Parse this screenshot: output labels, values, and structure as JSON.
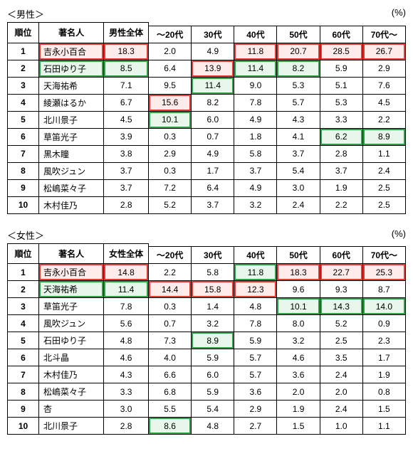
{
  "labels": {
    "percent": "(%)",
    "rank": "順位",
    "celebrity": "著名人",
    "age_headers": [
      "～20代",
      "30代",
      "40代",
      "50代",
      "60代",
      "70代～"
    ]
  },
  "tables": [
    {
      "title": "＜男性＞",
      "total_label": "男性全体",
      "rows": [
        {
          "rank": "1",
          "name": "吉永小百合",
          "name_hl": "red",
          "total": "18.3",
          "total_hl": "red",
          "vals": [
            "2.0",
            "4.9",
            "11.8",
            "20.7",
            "28.5",
            "26.7"
          ],
          "hl": [
            null,
            null,
            "red",
            "red",
            "red",
            "red"
          ]
        },
        {
          "rank": "2",
          "name": "石田ゆり子",
          "name_hl": "green",
          "total": "8.5",
          "total_hl": "green",
          "vals": [
            "6.4",
            "13.9",
            "11.4",
            "8.2",
            "5.9",
            "2.9"
          ],
          "hl": [
            null,
            "red",
            "green",
            "green",
            null,
            null
          ]
        },
        {
          "rank": "3",
          "name": "天海祐希",
          "name_hl": null,
          "total": "7.1",
          "total_hl": null,
          "vals": [
            "9.5",
            "11.4",
            "9.0",
            "5.3",
            "5.1",
            "7.6"
          ],
          "hl": [
            null,
            "green",
            null,
            null,
            null,
            null
          ]
        },
        {
          "rank": "4",
          "name": "綾瀬はるか",
          "name_hl": null,
          "total": "6.7",
          "total_hl": null,
          "vals": [
            "15.6",
            "8.2",
            "7.8",
            "5.7",
            "5.3",
            "4.5"
          ],
          "hl": [
            "red",
            null,
            null,
            null,
            null,
            null
          ]
        },
        {
          "rank": "5",
          "name": "北川景子",
          "name_hl": null,
          "total": "4.5",
          "total_hl": null,
          "vals": [
            "10.1",
            "6.0",
            "4.9",
            "4.3",
            "3.3",
            "2.2"
          ],
          "hl": [
            "green",
            null,
            null,
            null,
            null,
            null
          ]
        },
        {
          "rank": "6",
          "name": "草笛光子",
          "name_hl": null,
          "total": "3.9",
          "total_hl": null,
          "vals": [
            "0.3",
            "0.7",
            "1.8",
            "4.1",
            "6.2",
            "8.9"
          ],
          "hl": [
            null,
            null,
            null,
            null,
            "green",
            "green"
          ]
        },
        {
          "rank": "7",
          "name": "黒木瞳",
          "name_hl": null,
          "total": "3.8",
          "total_hl": null,
          "vals": [
            "2.9",
            "4.9",
            "5.8",
            "3.7",
            "2.8",
            "1.1"
          ],
          "hl": [
            null,
            null,
            null,
            null,
            null,
            null
          ]
        },
        {
          "rank": "8",
          "name": "風吹ジュン",
          "name_hl": null,
          "total": "3.7",
          "total_hl": null,
          "vals": [
            "0.3",
            "1.7",
            "3.7",
            "5.4",
            "3.7",
            "2.4"
          ],
          "hl": [
            null,
            null,
            null,
            null,
            null,
            null
          ]
        },
        {
          "rank": "9",
          "name": "松嶋菜々子",
          "name_hl": null,
          "total": "3.7",
          "total_hl": null,
          "vals": [
            "7.2",
            "6.4",
            "4.9",
            "3.0",
            "1.9",
            "2.5"
          ],
          "hl": [
            null,
            null,
            null,
            null,
            null,
            null
          ]
        },
        {
          "rank": "10",
          "name": "木村佳乃",
          "name_hl": null,
          "total": "2.8",
          "total_hl": null,
          "vals": [
            "5.2",
            "3.7",
            "3.2",
            "2.4",
            "2.2",
            "2.5"
          ],
          "hl": [
            null,
            null,
            null,
            null,
            null,
            null
          ]
        }
      ]
    },
    {
      "title": "＜女性＞",
      "total_label": "女性全体",
      "rows": [
        {
          "rank": "1",
          "name": "吉永小百合",
          "name_hl": "red",
          "total": "14.8",
          "total_hl": "red",
          "vals": [
            "2.2",
            "5.8",
            "11.8",
            "18.3",
            "22.7",
            "25.3"
          ],
          "hl": [
            null,
            null,
            "green",
            "red",
            "red",
            "red"
          ]
        },
        {
          "rank": "2",
          "name": "天海祐希",
          "name_hl": "green",
          "total": "11.4",
          "total_hl": "green",
          "vals": [
            "14.4",
            "15.8",
            "12.3",
            "9.6",
            "9.3",
            "8.7"
          ],
          "hl": [
            "red",
            "red",
            "red",
            null,
            null,
            null
          ]
        },
        {
          "rank": "3",
          "name": "草笛光子",
          "name_hl": null,
          "total": "7.8",
          "total_hl": null,
          "vals": [
            "0.3",
            "1.4",
            "4.8",
            "10.1",
            "14.3",
            "14.0"
          ],
          "hl": [
            null,
            null,
            null,
            "green",
            "green",
            "green"
          ]
        },
        {
          "rank": "4",
          "name": "風吹ジュン",
          "name_hl": null,
          "total": "5.6",
          "total_hl": null,
          "vals": [
            "0.7",
            "3.2",
            "7.8",
            "8.0",
            "5.2",
            "0.9"
          ],
          "hl": [
            null,
            null,
            null,
            null,
            null,
            null
          ]
        },
        {
          "rank": "5",
          "name": "石田ゆり子",
          "name_hl": null,
          "total": "4.8",
          "total_hl": null,
          "vals": [
            "7.3",
            "8.9",
            "5.9",
            "3.2",
            "2.5",
            "2.3"
          ],
          "hl": [
            null,
            "green",
            null,
            null,
            null,
            null
          ]
        },
        {
          "rank": "6",
          "name": "北斗晶",
          "name_hl": null,
          "total": "4.6",
          "total_hl": null,
          "vals": [
            "4.0",
            "5.9",
            "5.7",
            "4.6",
            "3.5",
            "1.7"
          ],
          "hl": [
            null,
            null,
            null,
            null,
            null,
            null
          ]
        },
        {
          "rank": "7",
          "name": "木村佳乃",
          "name_hl": null,
          "total": "4.3",
          "total_hl": null,
          "vals": [
            "6.6",
            "6.0",
            "5.7",
            "3.6",
            "2.4",
            "1.9"
          ],
          "hl": [
            null,
            null,
            null,
            null,
            null,
            null
          ]
        },
        {
          "rank": "8",
          "name": "松嶋菜々子",
          "name_hl": null,
          "total": "3.3",
          "total_hl": null,
          "vals": [
            "6.8",
            "5.9",
            "3.6",
            "2.0",
            "2.0",
            "0.8"
          ],
          "hl": [
            null,
            null,
            null,
            null,
            null,
            null
          ]
        },
        {
          "rank": "9",
          "name": "杏",
          "name_hl": null,
          "total": "3.0",
          "total_hl": null,
          "vals": [
            "5.5",
            "5.4",
            "2.9",
            "1.9",
            "2.4",
            "1.5"
          ],
          "hl": [
            null,
            null,
            null,
            null,
            null,
            null
          ]
        },
        {
          "rank": "10",
          "name": "北川景子",
          "name_hl": null,
          "total": "2.8",
          "total_hl": null,
          "vals": [
            "8.6",
            "4.8",
            "2.7",
            "1.5",
            "1.0",
            "1.1"
          ],
          "hl": [
            "green",
            null,
            null,
            null,
            null,
            null
          ]
        }
      ]
    }
  ]
}
